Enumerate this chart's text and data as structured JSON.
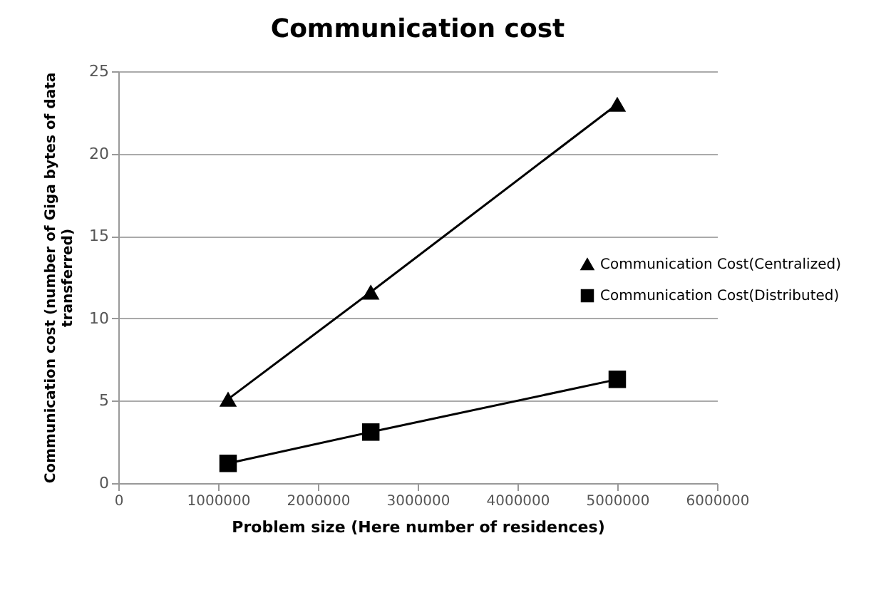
{
  "chart_data": {
    "type": "line",
    "title": "Communication cost",
    "xlabel": "Problem size (Here number of residences)",
    "ylabel": "Communication cost (number of Giga bytes of data transferred)",
    "x": [
      1100000,
      2530000,
      5000000
    ],
    "series": [
      {
        "name": "Communication Cost(Centralized)",
        "color": "#000000",
        "marker": "triangle",
        "values": [
          5.1,
          11.6,
          23.0
        ]
      },
      {
        "name": "Communication Cost(Distributed)",
        "color": "#000000",
        "marker": "square",
        "values": [
          1.2,
          3.1,
          6.3
        ]
      }
    ],
    "xlim": [
      0,
      6000000
    ],
    "xticks": [
      0,
      1000000,
      2000000,
      3000000,
      4000000,
      5000000,
      6000000
    ],
    "ylim": [
      0,
      25
    ],
    "yticks": [
      0,
      5,
      10,
      15,
      20,
      25
    ],
    "grid": "y",
    "legend": "right",
    "line_style": "solid"
  }
}
